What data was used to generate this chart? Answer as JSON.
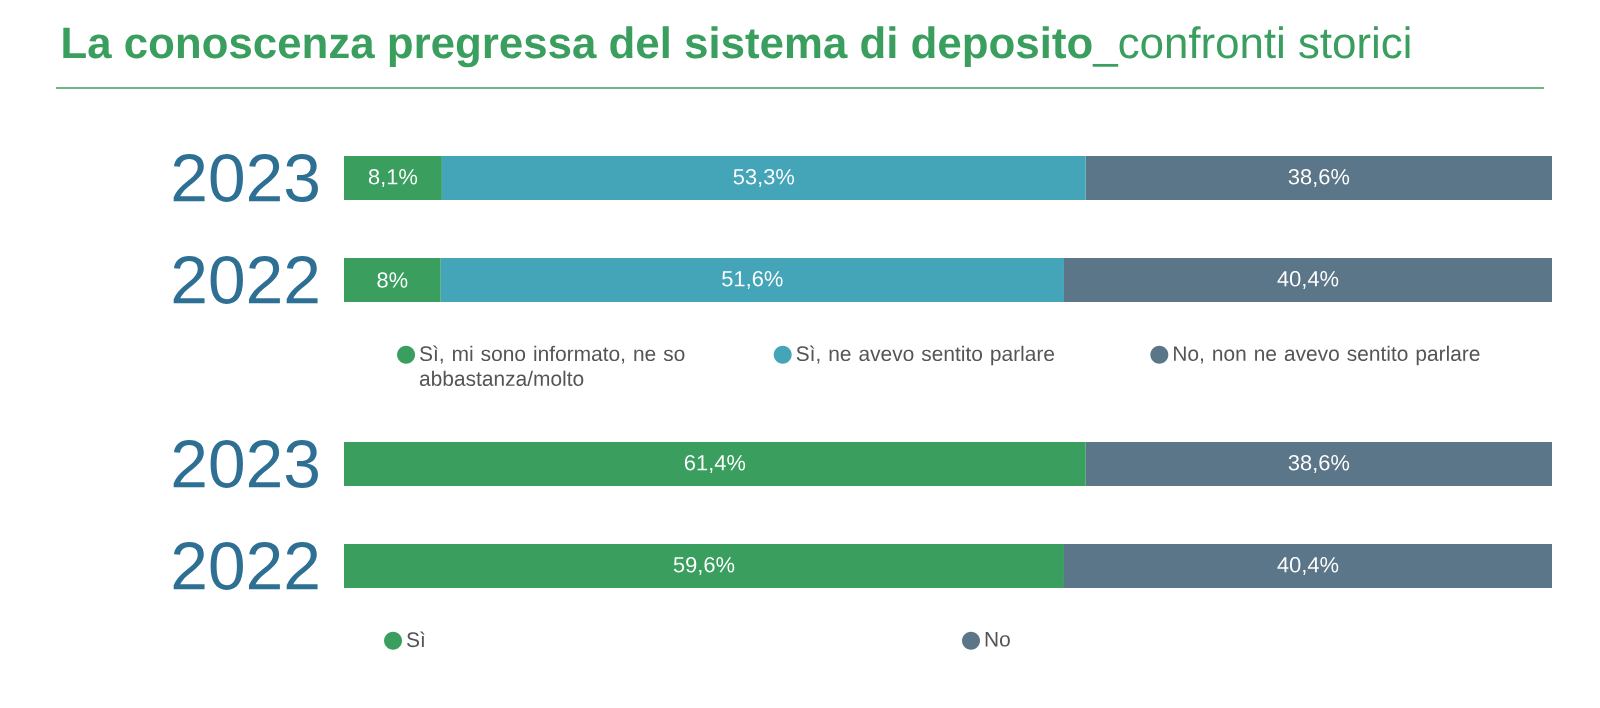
{
  "chart_data": [
    {
      "type": "bar",
      "orientation": "horizontal",
      "stacked": true,
      "title": "**La conoscenza pregressa del sistema di deposito**_confronti storici",
      "categories": [
        "2023",
        "2022"
      ],
      "xlim": [
        0,
        100
      ],
      "tick_labels": "y",
      "legend": "bottom",
      "series": [
        {
          "name": "Sì, mi sono informato, ne so abbastanza/molto",
          "color": "#3a9e5f",
          "values": [
            8.1,
            8
          ],
          "value_labels": [
            "8,1%",
            "8%"
          ]
        },
        {
          "name": "Sì, ne avevo sentito parlare",
          "color": "#45a5b8",
          "values": [
            53.3,
            51.6
          ],
          "value_labels": [
            "53,3%",
            "51,6%"
          ]
        },
        {
          "name": "No, non ne avevo sentito parlare",
          "color": "#5b7688",
          "values": [
            38.6,
            40.4
          ],
          "value_labels": [
            "38,6%",
            "40,4%"
          ]
        }
      ]
    },
    {
      "type": "bar",
      "orientation": "horizontal",
      "stacked": true,
      "categories": [
        "2023",
        "2022"
      ],
      "xlim": [
        0,
        100
      ],
      "tick_labels": "y",
      "legend": "bottom",
      "series": [
        {
          "name": "Sì",
          "color": "#3a9e5f",
          "values": [
            61.4,
            59.6
          ],
          "value_labels": [
            "61,4%",
            "59,6%"
          ]
        },
        {
          "name": "No",
          "color": "#5b7688",
          "values": [
            38.6,
            40.4
          ],
          "value_labels": [
            "38,6%",
            "40,4%"
          ]
        }
      ]
    }
  ]
}
